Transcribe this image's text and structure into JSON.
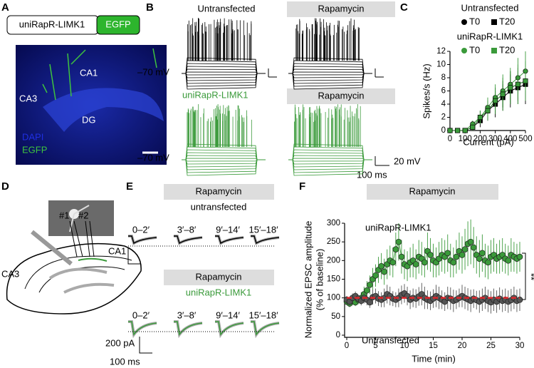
{
  "panels": {
    "A": {
      "label": "A",
      "construct": {
        "name": "uniRapR-LIMK1",
        "tag": "EGFP"
      },
      "image_labels": {
        "ca1": "CA1",
        "ca3": "CA3",
        "dg": "DG",
        "dapi": "DAPI",
        "egfp": "EGFP"
      }
    },
    "B": {
      "label": "B",
      "top": {
        "control": "Untransfected",
        "treatment": "Rapamycin",
        "potential": "–70 mV"
      },
      "bottom": {
        "control": "uniRapR-LIMK1",
        "treatment": "Rapamycin",
        "potential": "–70 mV"
      },
      "scale": {
        "voltage": "20 mV",
        "time": "100 ms"
      }
    },
    "C": {
      "label": "C"
    },
    "D": {
      "label": "D",
      "electrodes": [
        "#1",
        "#2"
      ],
      "regions": [
        "CA3",
        "CA1"
      ]
    },
    "E": {
      "label": "E",
      "groups": [
        {
          "treatment": "Rapamycin",
          "condition": "untransfected",
          "windows": [
            "0–2′",
            "3′–8′",
            "9′–14′",
            "15′–18′"
          ]
        },
        {
          "treatment": "Rapamycin",
          "condition": "uniRapR-LIMK1",
          "windows": [
            "0–2′",
            "3′–8′",
            "9′–14′",
            "15′–18′"
          ]
        }
      ],
      "scale": {
        "current": "200 pA",
        "time": "100 ms"
      }
    },
    "F": {
      "label": "F"
    }
  },
  "chart_data": [
    {
      "type": "line",
      "xlabel": "Current (pA)",
      "ylabel": "Spikes/s (Hz)",
      "x": [
        0,
        50,
        100,
        150,
        200,
        250,
        300,
        350,
        400,
        450,
        500
      ],
      "xlim": [
        0,
        500
      ],
      "xticks": [
        0,
        100,
        200,
        300,
        400,
        500
      ],
      "ylim": [
        0,
        12
      ],
      "yticks": [
        0,
        2,
        4,
        6,
        8,
        10,
        12
      ],
      "series": [
        {
          "name": "T0",
          "group": "Untransfected",
          "color": "#000000",
          "marker": "circle",
          "values": [
            0,
            0,
            0,
            0.5,
            2,
            3,
            4.5,
            5.5,
            6.5,
            7,
            7.5
          ],
          "errors": [
            0,
            0,
            0,
            0.5,
            1,
            1.5,
            2,
            2,
            2.5,
            2.5,
            3
          ]
        },
        {
          "name": "T20",
          "group": "Untransfected",
          "color": "#000000",
          "marker": "square",
          "values": [
            0,
            0,
            0,
            0.5,
            1.5,
            3,
            4,
            5,
            6,
            6.5,
            7
          ],
          "errors": [
            0,
            0,
            0,
            0.5,
            1,
            1.5,
            2,
            2,
            2.5,
            2.5,
            3
          ]
        },
        {
          "name": "T0",
          "group": "uniRapR-LIMK1",
          "color": "#3a9a3a",
          "marker": "circle",
          "values": [
            0,
            0,
            0,
            1,
            2,
            3.5,
            5,
            6,
            7,
            8,
            9
          ],
          "errors": [
            0,
            0,
            0,
            0.5,
            1,
            1.5,
            2,
            2.5,
            2.5,
            3,
            3
          ]
        },
        {
          "name": "T20",
          "group": "uniRapR-LIMK1",
          "color": "#3a9a3a",
          "marker": "square",
          "values": [
            0,
            0,
            0,
            0.5,
            2,
            3,
            4.5,
            5.5,
            6.5,
            7,
            7.5
          ],
          "errors": [
            0,
            0,
            0,
            0.5,
            1,
            1.5,
            2,
            2.5,
            2.5,
            3,
            3
          ]
        }
      ]
    },
    {
      "type": "scatter",
      "xlabel": "Time (min)",
      "ylabel": [
        "Normalized EPSC amplitude",
        "(% of baseline)"
      ],
      "treatment_label": "Rapamycin",
      "significance": "**",
      "reference_line": 100,
      "reference_color": "#e0262b",
      "x": [
        0,
        0.5,
        1,
        1.5,
        2,
        2.5,
        3,
        3.5,
        4,
        4.5,
        5,
        5.5,
        6,
        6.5,
        7,
        7.5,
        8,
        8.5,
        9,
        9.5,
        10,
        10.5,
        11,
        11.5,
        12,
        12.5,
        13,
        13.5,
        14,
        14.5,
        15,
        15.5,
        16,
        16.5,
        17,
        17.5,
        18,
        18.5,
        19,
        19.5,
        20,
        20.5,
        21,
        21.5,
        22,
        22.5,
        23,
        23.5,
        24,
        24.5,
        25,
        25.5,
        26,
        26.5,
        27,
        27.5,
        28,
        28.5,
        29,
        29.5,
        30
      ],
      "xlim": [
        0,
        30
      ],
      "xticks": [
        0,
        5,
        10,
        15,
        20,
        25,
        30
      ],
      "ylim": [
        0,
        300
      ],
      "yticks": [
        0,
        50,
        100,
        150,
        200,
        250,
        300
      ],
      "series": [
        {
          "name": "uniRapR-LIMK1",
          "color": "#3a9a3a",
          "values": [
            90,
            85,
            92,
            88,
            95,
            100,
            110,
            120,
            135,
            150,
            160,
            175,
            185,
            170,
            190,
            200,
            195,
            230,
            250,
            210,
            190,
            185,
            195,
            200,
            190,
            210,
            205,
            195,
            225,
            215,
            200,
            195,
            205,
            215,
            210,
            220,
            200,
            195,
            210,
            225,
            215,
            230,
            245,
            250,
            235,
            215,
            205,
            220,
            200,
            195,
            210,
            215,
            205,
            210,
            215,
            205,
            200,
            215,
            210,
            205,
            210
          ],
          "errors": [
            10,
            10,
            12,
            10,
            12,
            15,
            20,
            25,
            25,
            30,
            30,
            35,
            35,
            35,
            40,
            40,
            40,
            45,
            50,
            45,
            40,
            40,
            40,
            45,
            40,
            45,
            45,
            40,
            50,
            45,
            45,
            40,
            45,
            45,
            45,
            50,
            45,
            40,
            45,
            50,
            50,
            55,
            60,
            60,
            55,
            50,
            50,
            50,
            45,
            45,
            45,
            45,
            40,
            45,
            45,
            40,
            40,
            45,
            40,
            40,
            40
          ]
        },
        {
          "name": "Untransfected",
          "color": "#555555",
          "values": [
            95,
            90,
            100,
            105,
            98,
            92,
            100,
            95,
            88,
            102,
            105,
            98,
            95,
            100,
            110,
            105,
            98,
            95,
            100,
            108,
            112,
            105,
            95,
            100,
            98,
            104,
            110,
            100,
            95,
            92,
            98,
            105,
            100,
            95,
            90,
            100,
            98,
            92,
            95,
            100,
            105,
            100,
            96,
            92,
            98,
            94,
            90,
            95,
            100,
            92,
            88,
            95,
            90,
            98,
            92,
            95,
            90,
            94,
            100,
            92,
            95
          ],
          "errors": [
            10,
            10,
            12,
            12,
            10,
            12,
            15,
            15,
            15,
            20,
            20,
            20,
            20,
            25,
            25,
            25,
            20,
            20,
            25,
            25,
            25,
            25,
            25,
            25,
            25,
            25,
            30,
            30,
            25,
            25,
            25,
            30,
            30,
            25,
            25,
            30,
            30,
            30,
            25,
            25,
            30,
            30,
            30,
            30,
            25,
            25,
            30,
            30,
            30,
            30,
            30,
            30,
            30,
            30,
            30,
            30,
            30,
            30,
            30,
            30,
            30
          ]
        }
      ]
    }
  ]
}
